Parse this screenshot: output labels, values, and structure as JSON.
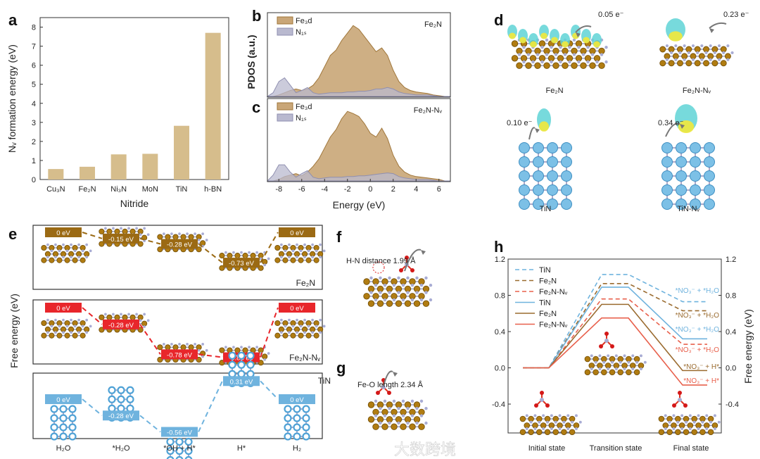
{
  "figure": {
    "watermark": "大数跨境"
  },
  "panel_labels": {
    "a": "a",
    "b": "b",
    "c": "c",
    "d": "d",
    "e": "e",
    "f": "f",
    "g": "g",
    "h": "h"
  },
  "colors": {
    "bar": "#d6bd8c",
    "fe3d": "#c9a677",
    "fe3d_line": "#a0763a",
    "n1s": "#b9b9cf",
    "fe2n": "#9b6a14",
    "fe2n_nv": "#e8262b",
    "tin": "#6fb3de",
    "fe2n_h": "#9a6b2f",
    "fe2n_nv_h": "#e8604c"
  },
  "chart_data": [
    {
      "panel": "a",
      "type": "bar",
      "categories": [
        "Cu₃N",
        "Fe₂N",
        "Ni₃N",
        "MoN",
        "TiN",
        "h-BN"
      ],
      "values": [
        0.55,
        0.67,
        1.32,
        1.35,
        2.82,
        7.7
      ],
      "xlabel": "Nitride",
      "ylabel": "Nᵥ formation energy (eV)",
      "ylim": [
        0,
        8.5
      ],
      "yticks": [
        "0",
        "1",
        "2",
        "3",
        "4",
        "5",
        "6",
        "7",
        "8"
      ]
    },
    {
      "panel": "b",
      "type": "area",
      "title": "Fe₂N",
      "x_start": -9,
      "x_step": 0.5,
      "xlim": [
        -9,
        7
      ],
      "series": [
        {
          "name": "Fe₃d",
          "values": [
            0,
            0,
            0.02,
            0.05,
            0.08,
            0.1,
            0.08,
            0.1,
            0.15,
            0.25,
            0.4,
            0.55,
            0.62,
            0.75,
            0.85,
            0.95,
            0.9,
            0.8,
            0.7,
            0.6,
            0.65,
            0.55,
            0.35,
            0.2,
            0.12,
            0.08,
            0.06,
            0.05,
            0.04,
            0.02,
            0.01,
            0,
            0
          ]
        },
        {
          "name": "N₁ₛ",
          "values": [
            0,
            0.05,
            0.2,
            0.25,
            0.15,
            0.05,
            0.08,
            0.12,
            0.05,
            0.03,
            0.04,
            0.05,
            0.05,
            0.05,
            0.06,
            0.06,
            0.07,
            0.07,
            0.08,
            0.1,
            0.1,
            0.12,
            0.1,
            0.06,
            0.04,
            0.03,
            0.02,
            0.02,
            0.02,
            0.01,
            0,
            0,
            0
          ]
        }
      ]
    },
    {
      "panel": "c",
      "type": "area",
      "title": "Fe₂N-Nᵥ",
      "x_start": -9,
      "x_step": 0.5,
      "xlim": [
        -9,
        7
      ],
      "xticks": [
        "-8",
        "-6",
        "-4",
        "-2",
        "0",
        "2",
        "4",
        "6"
      ],
      "xlabel": "Energy (eV)",
      "ylabel": "PDOS (a.u.)",
      "series": [
        {
          "name": "Fe₃d",
          "values": [
            0,
            0,
            0.02,
            0.06,
            0.08,
            0.1,
            0.07,
            0.12,
            0.2,
            0.3,
            0.45,
            0.6,
            0.7,
            0.85,
            0.95,
            0.92,
            0.88,
            0.78,
            0.65,
            0.6,
            0.72,
            0.58,
            0.35,
            0.2,
            0.12,
            0.08,
            0.06,
            0.05,
            0.04,
            0.03,
            0.02,
            0,
            0
          ]
        },
        {
          "name": "N₁ₛ",
          "values": [
            0,
            0.08,
            0.22,
            0.22,
            0.12,
            0.05,
            0.1,
            0.14,
            0.05,
            0.03,
            0.04,
            0.05,
            0.05,
            0.05,
            0.06,
            0.06,
            0.07,
            0.07,
            0.08,
            0.09,
            0.1,
            0.11,
            0.1,
            0.06,
            0.04,
            0.03,
            0.02,
            0.02,
            0.02,
            0.01,
            0,
            0,
            0
          ]
        }
      ]
    },
    {
      "panel": "e",
      "type": "line",
      "ylabel": "Free energy (eV)",
      "categories": [
        "H₂O",
        "*H₂O",
        "*OH + H*",
        "H*",
        "H₂"
      ],
      "series": [
        {
          "name": "Fe₂N",
          "values": [
            0,
            -0.15,
            -0.28,
            -0.73,
            0
          ],
          "labels": [
            "0 eV",
            "-0.15 eV",
            "-0.28 eV",
            "-0.73 eV",
            "0 eV"
          ]
        },
        {
          "name": "Fe₂N-Nᵥ",
          "values": [
            0,
            -0.28,
            -0.78,
            -0.83,
            0
          ],
          "labels": [
            "0 eV",
            "-0.28 eV",
            "-0.78 eV",
            "-0.83 eV",
            "0 eV"
          ]
        },
        {
          "name": "TiN",
          "values": [
            0,
            -0.28,
            -0.56,
            0.31,
            0
          ],
          "labels": [
            "0 eV",
            "-0.28 eV",
            "-0.56 eV",
            "0.31 eV",
            "0 eV"
          ]
        }
      ]
    },
    {
      "panel": "h",
      "type": "line",
      "ylabel": "Free energy (eV)",
      "categories": [
        "Initial state",
        "Transition state",
        "Final state"
      ],
      "ylim": [
        -0.72,
        1.2
      ],
      "yticks": [
        "1.2",
        "0.8",
        "0.4",
        "0.0",
        "-0.4"
      ],
      "series": [
        {
          "name": "TiN",
          "style": "dashed",
          "values": [
            0,
            1.03,
            0.73
          ],
          "final_label": "*NO₃⁻ + *H₂O"
        },
        {
          "name": "Fe₂N",
          "style": "dashed",
          "values": [
            0,
            0.93,
            0.63
          ],
          "final_label": "*NO₃⁻ + *H₂O"
        },
        {
          "name": "Fe₂N-Nᵥ",
          "style": "dashed",
          "values": [
            0,
            0.76,
            0.26
          ],
          "final_label": "*NO₃⁻ + *H₂O"
        },
        {
          "name": "TiN",
          "style": "solid",
          "values": [
            0,
            0.89,
            0.32
          ],
          "final_label": "*NO₃⁻ + *H₂O"
        },
        {
          "name": "Fe₂N",
          "style": "solid",
          "values": [
            0,
            0.7,
            -0.03
          ],
          "final_label": "*NO₃⁻ + H*"
        },
        {
          "name": "Fe₂N-Nᵥ",
          "style": "solid",
          "values": [
            0,
            0.55,
            -0.19
          ],
          "final_label": "*NO₃⁻ + H*"
        }
      ]
    }
  ],
  "panel_d": {
    "items": [
      {
        "label": "Fe₂N",
        "charge": "0.05 e⁻"
      },
      {
        "label": "Fe₂N-Nᵥ",
        "charge": "0.23 e⁻"
      },
      {
        "label": "TiN",
        "charge": "0.10 e⁻"
      },
      {
        "label": "TiN-Nᵥ",
        "charge": "0.34 e⁻"
      }
    ]
  },
  "panel_f": {
    "annotation": "H-N distance 1.99 Å"
  },
  "panel_g": {
    "annotation": "Fe-O length 2.34 Å"
  }
}
